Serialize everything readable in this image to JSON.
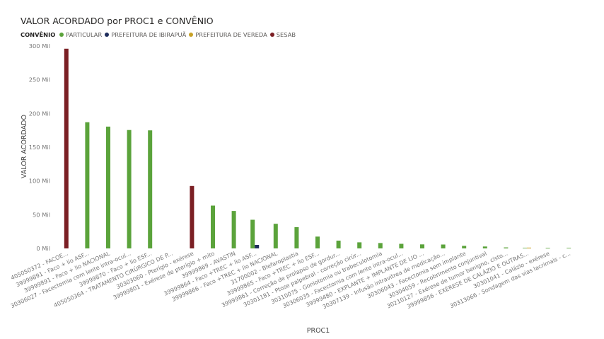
{
  "chart_data": {
    "type": "bar",
    "title": "VALOR ACORDADO por PROC1 e CONVÊNIO",
    "xlabel": "PROC1",
    "ylabel": "VALOR ACORDADO",
    "ylim": [
      0,
      300000
    ],
    "yticks": [
      {
        "value": 0,
        "label": "0 Mil"
      },
      {
        "value": 50000,
        "label": "50 Mil"
      },
      {
        "value": 100000,
        "label": "100 Mil"
      },
      {
        "value": 150000,
        "label": "150 Mil"
      },
      {
        "value": 200000,
        "label": "200 Mil"
      },
      {
        "value": 250000,
        "label": "250 Mil"
      },
      {
        "value": 300000,
        "label": "300 Mil"
      }
    ],
    "grid": false,
    "legend_title": "CONVÊNIO",
    "legend_position": "top-left",
    "categories": [
      "405050372 - FACOE...",
      "39999891 - Faco + lio ASF...",
      "39999891 - Faco + lio NACIONAL",
      "30306027 - Facectomia com lente intra-ocul...",
      "39999870 - Faco + lio ESF...",
      "405050364 - TRATAMENTO CIRÚRGICO DE P...",
      "30303060 - Pterígio - exérese",
      "39999801 - Exérese de pterígio + mito",
      "39999869 - AVASTIN",
      "39999864 - Faco +TREC + lio ASF...",
      "39999866 - Faco +TREC + lio NACIONAL",
      "31700002 - Blefaroplastia",
      "39999865 - Faco +TREC + lio ESF...",
      "39999861 - Correção de prolapso de gordur...",
      "30301181 - Ptose palpebral - correção cirúr...",
      "30310075 - Goniotomia ou trabeculotomia",
      "30306035 - Facectomia com lente intra-ocul...",
      "39999480 - EXPLANTE + IMPLANTE DE LIO ...",
      "30307139 - Infusão intravítrea de medicação...",
      "30306043 - Facectomia sem implante",
      "30304059 - Recobrimento conjuntival",
      "30210127 - Exérese de tumor benigno, cisto...",
      "39999856 - EXÉRESE DE CALÁZIO E OUTRAS...",
      "30301041 - Calázio - exérese",
      "30313066 - Sondagem das vias lacrimais - c..."
    ],
    "series": [
      {
        "name": "PARTICULAR",
        "color": "#5ba33b",
        "values": [
          null,
          187000,
          180500,
          175500,
          175000,
          null,
          null,
          63500,
          55500,
          42500,
          36500,
          31500,
          17500,
          11500,
          9000,
          8000,
          6800,
          6000,
          5800,
          3800,
          2800,
          1500,
          800,
          600,
          700
        ]
      },
      {
        "name": "PREFEITURA DE IBIRAPUÃ",
        "color": "#1f2d5c",
        "values": [
          null,
          null,
          null,
          null,
          null,
          null,
          null,
          null,
          null,
          5200,
          null,
          null,
          null,
          null,
          null,
          null,
          null,
          null,
          null,
          null,
          null,
          null,
          null,
          null,
          null
        ]
      },
      {
        "name": "PREFEITURA DE VEREDA",
        "color": "#c8a227",
        "values": [
          null,
          null,
          null,
          null,
          null,
          null,
          null,
          null,
          null,
          null,
          null,
          null,
          null,
          null,
          null,
          null,
          null,
          null,
          null,
          null,
          null,
          null,
          1200,
          null,
          null
        ]
      },
      {
        "name": "SESAB",
        "color": "#7b1f24",
        "values": [
          296000,
          null,
          null,
          null,
          null,
          null,
          92500,
          null,
          null,
          null,
          null,
          null,
          null,
          null,
          null,
          null,
          null,
          null,
          null,
          null,
          null,
          null,
          null,
          null,
          null
        ]
      }
    ]
  }
}
